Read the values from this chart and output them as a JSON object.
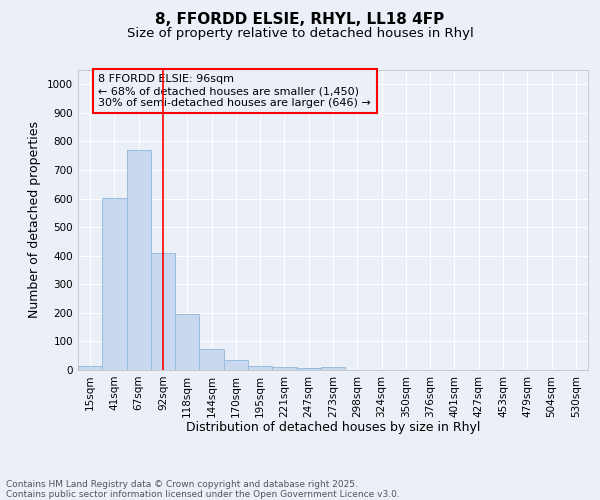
{
  "title": "8, FFORDD ELSIE, RHYL, LL18 4FP",
  "subtitle": "Size of property relative to detached houses in Rhyl",
  "xlabel": "Distribution of detached houses by size in Rhyl",
  "ylabel": "Number of detached properties",
  "bar_labels": [
    "15sqm",
    "41sqm",
    "67sqm",
    "92sqm",
    "118sqm",
    "144sqm",
    "170sqm",
    "195sqm",
    "221sqm",
    "247sqm",
    "273sqm",
    "298sqm",
    "324sqm",
    "350sqm",
    "376sqm",
    "401sqm",
    "427sqm",
    "453sqm",
    "479sqm",
    "504sqm",
    "530sqm"
  ],
  "bar_values": [
    13,
    603,
    770,
    410,
    195,
    75,
    35,
    15,
    10,
    8,
    10,
    0,
    0,
    0,
    0,
    0,
    0,
    0,
    0,
    0,
    0
  ],
  "bar_color": "#c8d8ee",
  "bar_edgecolor": "#99bbdd",
  "background_color": "#eaeff8",
  "grid_color": "#ffffff",
  "vline_x": 3.0,
  "vline_color": "red",
  "ylim": [
    0,
    1050
  ],
  "yticks": [
    0,
    100,
    200,
    300,
    400,
    500,
    600,
    700,
    800,
    900,
    1000
  ],
  "annotation_box_text": "8 FFORDD ELSIE: 96sqm\n← 68% of detached houses are smaller (1,450)\n30% of semi-detached houses are larger (646) →",
  "footer_text": "Contains HM Land Registry data © Crown copyright and database right 2025.\nContains public sector information licensed under the Open Government Licence v3.0.",
  "title_fontsize": 11,
  "subtitle_fontsize": 9.5,
  "axis_label_fontsize": 9,
  "tick_fontsize": 7.5,
  "annotation_fontsize": 8,
  "footer_fontsize": 6.5
}
